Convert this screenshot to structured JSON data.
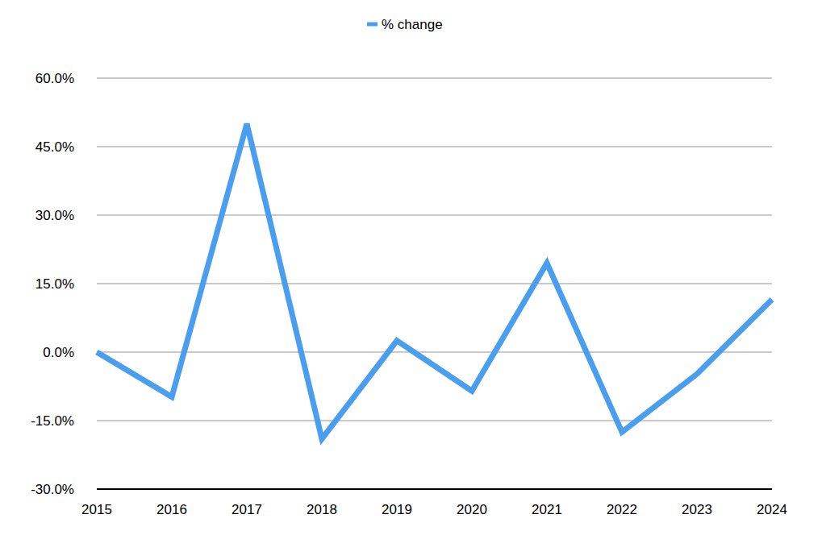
{
  "chart_data": {
    "type": "line",
    "categories": [
      "2015",
      "2016",
      "2017",
      "2018",
      "2019",
      "2020",
      "2021",
      "2022",
      "2023",
      "2024"
    ],
    "series": [
      {
        "name": "% change",
        "color": "#4a9ef0",
        "values": [
          0,
          -9.8,
          50,
          -19,
          2.5,
          -8.5,
          19.5,
          -17.5,
          -4.8,
          11.5
        ]
      }
    ],
    "ylim": [
      -30,
      60
    ],
    "yticks": [
      {
        "value": -30,
        "label": "-30.0%"
      },
      {
        "value": -15,
        "label": "-15.0%"
      },
      {
        "value": 0,
        "label": "0.0%"
      },
      {
        "value": 15,
        "label": "15.0%"
      },
      {
        "value": 30,
        "label": "30.0%"
      },
      {
        "value": 45,
        "label": "45.0%"
      },
      {
        "value": 60,
        "label": "60.0%"
      }
    ],
    "grid": true,
    "legend": "top"
  }
}
